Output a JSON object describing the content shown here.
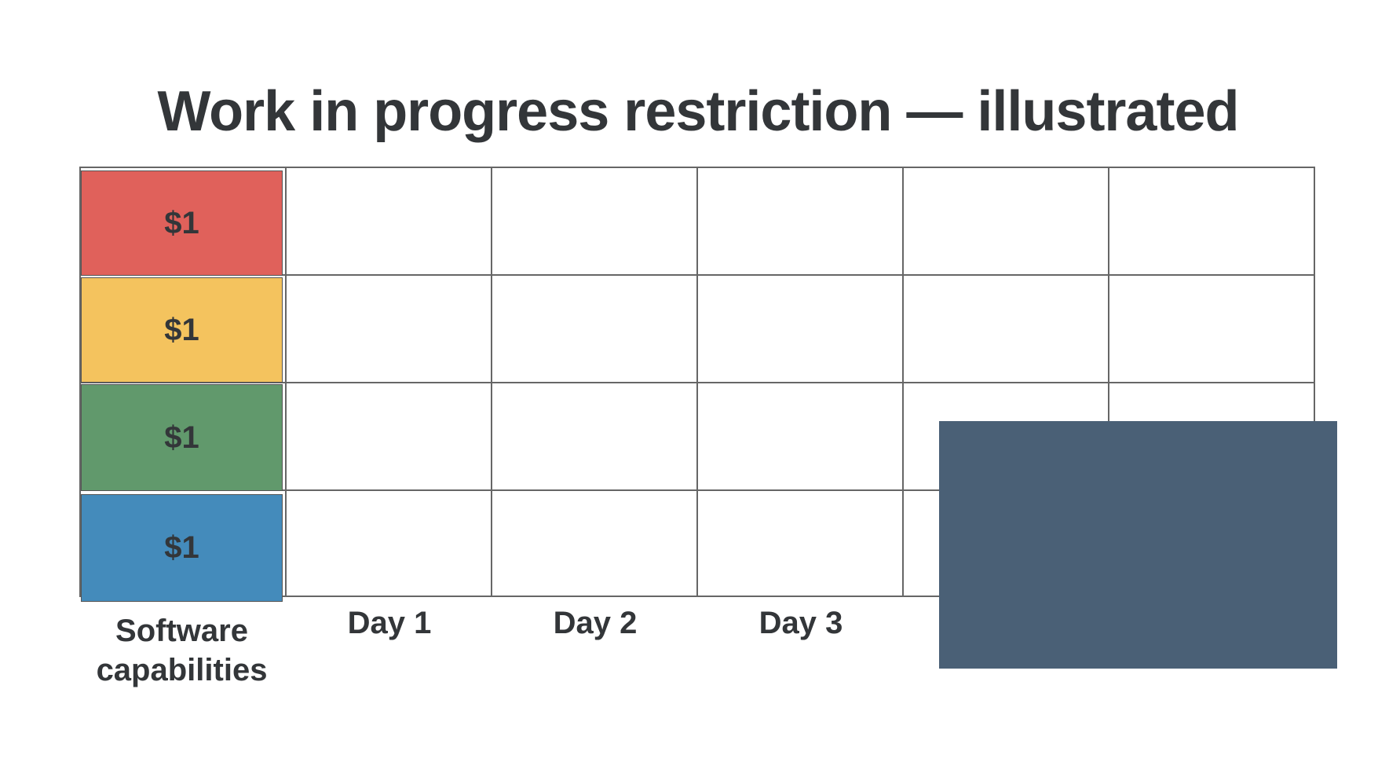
{
  "title": "Work in progress restriction — illustrated",
  "capabilities": [
    {
      "value": "$1",
      "color": "#e0615b"
    },
    {
      "value": "$1",
      "color": "#f4c35e"
    },
    {
      "value": "$1",
      "color": "#61996c"
    },
    {
      "value": "$1",
      "color": "#448bbb"
    }
  ],
  "column_labels": {
    "capabilities": "Software capabilities",
    "day1": "Day 1",
    "day2": "Day 2",
    "day3": "Day 3"
  },
  "overlay_color": "#4a6076"
}
